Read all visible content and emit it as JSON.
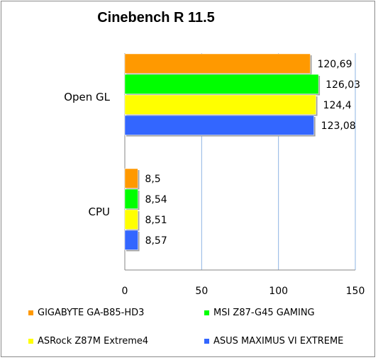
{
  "chart_data": {
    "type": "bar",
    "orientation": "horizontal",
    "title": "Cinebench R 11.5",
    "xlabel": "",
    "ylabel": "",
    "categories": [
      "Open GL",
      "CPU"
    ],
    "xlim": [
      0,
      150
    ],
    "xticks": [
      "0",
      "50",
      "100",
      "150"
    ],
    "grid": true,
    "legend_placement": "bottom",
    "series": [
      {
        "name": "GIGABYTE GA-B85-HD3",
        "color": "#ff9900",
        "values": [
          120.69,
          8.5
        ],
        "labels": [
          "120,69",
          "8,5"
        ]
      },
      {
        "name": "MSI Z87-G45 GAMING",
        "color": "#00ff00",
        "values": [
          126.03,
          8.54
        ],
        "labels": [
          "126,03",
          "8,54"
        ]
      },
      {
        "name": "ASRock Z87M Extreme4",
        "color": "#ffff00",
        "values": [
          124.4,
          8.51
        ],
        "labels": [
          "124,4",
          "8,51"
        ]
      },
      {
        "name": "ASUS MAXIMUS VI EXTREME",
        "color": "#3366ff",
        "values": [
          123.08,
          8.57
        ],
        "labels": [
          "123,08",
          "8,57"
        ]
      }
    ]
  }
}
